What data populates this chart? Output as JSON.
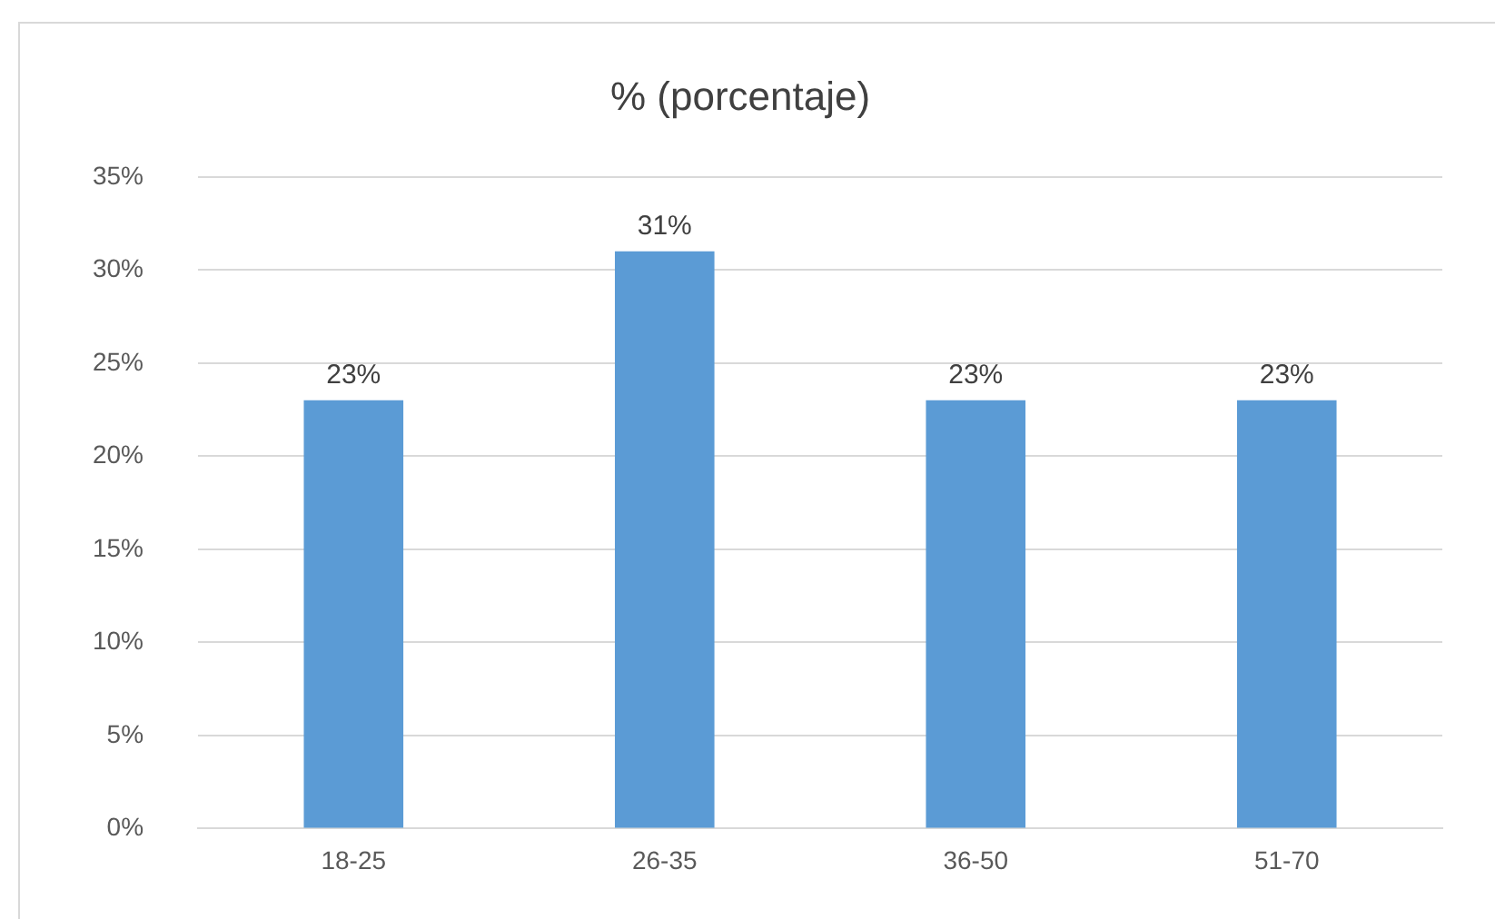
{
  "chart_data": {
    "type": "bar",
    "title": "% (porcentaje)",
    "categories": [
      "18-25",
      "26-35",
      "36-50",
      "51-70"
    ],
    "values": [
      23,
      31,
      23,
      23
    ],
    "value_labels": [
      "23%",
      "31%",
      "23%",
      "23%"
    ],
    "color": "#5b9bd5",
    "ylim": [
      0,
      35
    ],
    "yticks": [
      {
        "value": 0,
        "label": "0%"
      },
      {
        "value": 5,
        "label": "5%"
      },
      {
        "value": 10,
        "label": "10%"
      },
      {
        "value": 15,
        "label": "15%"
      },
      {
        "value": 20,
        "label": "20%"
      },
      {
        "value": 25,
        "label": "25%"
      },
      {
        "value": 30,
        "label": "30%"
      },
      {
        "value": 35,
        "label": "35%"
      }
    ],
    "grid": "y",
    "legend": false
  }
}
